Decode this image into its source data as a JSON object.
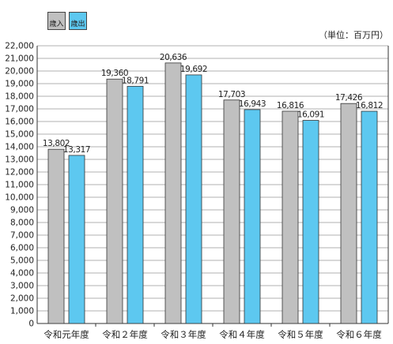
{
  "chart_data": {
    "type": "bar",
    "unit": "（単位：百万円）",
    "categories": [
      "令和元年度",
      "令和２年度",
      "令和３年度",
      "令和４年度",
      "令和５年度",
      "令和６年度"
    ],
    "series": [
      {
        "name": "歳入",
        "color": "#c0c0c0",
        "values": [
          13802,
          19360,
          20636,
          17703,
          16816,
          17426
        ]
      },
      {
        "name": "歳出",
        "color": "#5dc8f0",
        "values": [
          13317,
          18791,
          19692,
          16943,
          16091,
          16812
        ]
      }
    ],
    "value_labels": [
      [
        "13,802",
        "19,360",
        "20,636",
        "17,703",
        "16,816",
        "17,426"
      ],
      [
        "13,317",
        "18,791",
        "19,692",
        "16,943",
        "16,091",
        "16,812"
      ]
    ],
    "ylim": [
      0,
      22000
    ],
    "yticks": [
      "0",
      "1,000",
      "2,000",
      "3,000",
      "4,000",
      "5,000",
      "6,000",
      "7,000",
      "8,000",
      "9,000",
      "10,000",
      "11,000",
      "12,000",
      "13,000",
      "14,000",
      "15,000",
      "16,000",
      "17,000",
      "18,000",
      "19,000",
      "20,000",
      "21,000",
      "22,000"
    ],
    "grid": true,
    "legend_position": "top-left"
  }
}
